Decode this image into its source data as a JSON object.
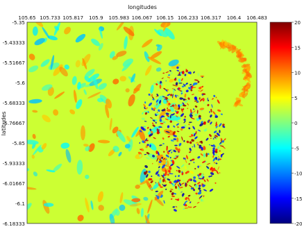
{
  "chart_data": {
    "type": "heatmap",
    "xlabel": "longitudes",
    "ylabel": "latitudes",
    "x_ticks": [
      "105.65",
      "105.733",
      "105.817",
      "105.9",
      "105.983",
      "106.067",
      "106.15",
      "106.233",
      "106.317",
      "106.4",
      "106.483"
    ],
    "y_ticks": [
      "-5.35",
      "-5.43333",
      "-5.51667",
      "-5.6",
      "-5.68333",
      "-5.76667",
      "-5.85",
      "-5.93333",
      "-6.01667",
      "-6.1",
      "-6.18333"
    ],
    "xlim": [
      105.65,
      106.483
    ],
    "ylim": [
      -6.18333,
      -5.35
    ],
    "colorbar": {
      "ticks": [
        "20",
        "15",
        "10",
        "5",
        "0",
        "-5",
        "-10",
        "-15",
        "-20"
      ],
      "range": [
        -20,
        20
      ],
      "colormap": "jet"
    },
    "background_value": 3,
    "grid": false,
    "legend": "none"
  }
}
